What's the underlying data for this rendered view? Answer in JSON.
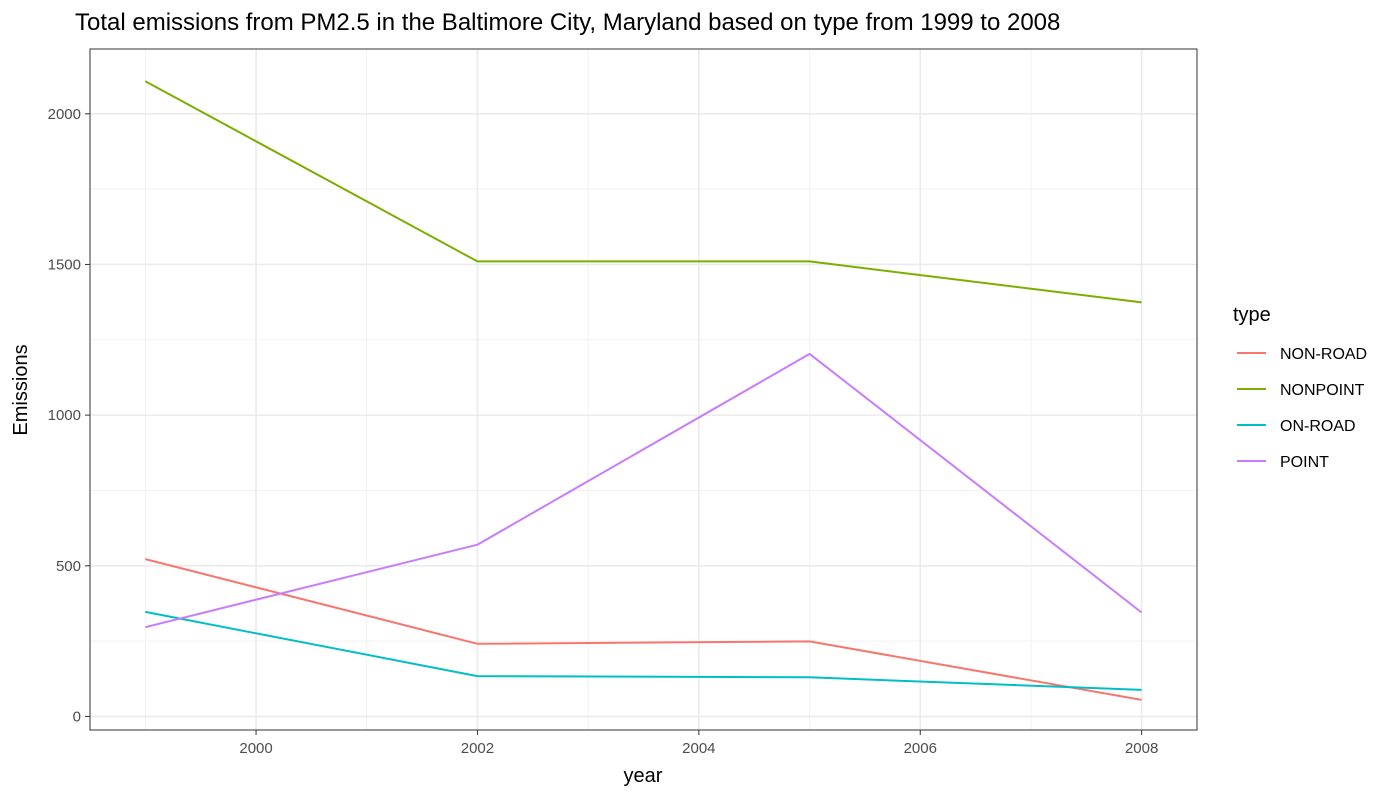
{
  "chart_data": {
    "type": "line",
    "title": "Total emissions from PM2.5 in the  Baltimore City, Maryland based on type from 1999 to 2008",
    "xlabel": "year",
    "ylabel": "Emissions",
    "x": [
      1999,
      2002,
      2005,
      2008
    ],
    "xlim": [
      1998.5,
      2008.5
    ],
    "ylim": [
      -45,
      2215
    ],
    "x_ticks": [
      2000,
      2002,
      2004,
      2006,
      2008
    ],
    "y_ticks": [
      0,
      500,
      1000,
      1500,
      2000
    ],
    "grid": true,
    "legend": {
      "title": "type",
      "position": "right"
    },
    "series": [
      {
        "name": "NON-ROAD",
        "color": "#F8766D",
        "values": [
          522,
          241,
          249,
          55
        ]
      },
      {
        "name": "NONPOINT",
        "color": "#7CAE00",
        "values": [
          2108,
          1510,
          1510,
          1374
        ]
      },
      {
        "name": "ON-ROAD",
        "color": "#00BFC4",
        "values": [
          347,
          134,
          130,
          88
        ]
      },
      {
        "name": "POINT",
        "color": "#C77CFF",
        "values": [
          296,
          570,
          1203,
          345
        ]
      }
    ]
  }
}
